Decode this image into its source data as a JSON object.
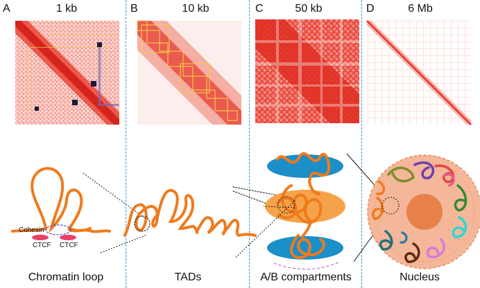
{
  "panels": [
    {
      "letter": "A",
      "resolution": "1 kb",
      "caption": "Chromatin loop"
    },
    {
      "letter": "B",
      "resolution": "10 kb",
      "caption": "TADs"
    },
    {
      "letter": "C",
      "resolution": "50 kb",
      "caption": "A/B compartments"
    },
    {
      "letter": "D",
      "resolution": "6 Mb",
      "caption": "Nucleus"
    }
  ],
  "labels": {
    "cohesin": "Cohesin",
    "ctcf_1": "CTCF",
    "ctcf_2": "CTCF"
  },
  "colors": {
    "heatmap": "#e8342a",
    "fiber": "#f07a1c",
    "tad_outline": "#f2c94c",
    "divider": "#3a8fc7",
    "compartment_blue": "#1b8fc7",
    "compartment_orange": "#f5a34a",
    "ctcf": "#e8426a",
    "nucleus": "#f4b799",
    "nucleolus": "#e8804a"
  }
}
